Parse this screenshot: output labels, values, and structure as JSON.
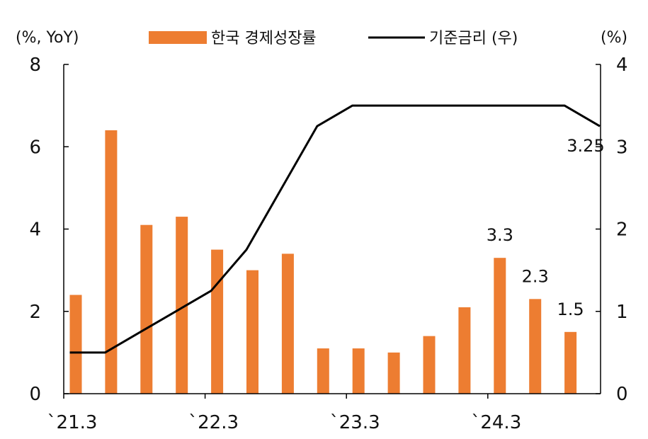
{
  "chart_data": {
    "type": "bar",
    "title": "",
    "left_axis_unit": "(%, YoY)",
    "right_axis_unit": "(%)",
    "categories": [
      "`21.3",
      "",
      "",
      "",
      "`22.3",
      "",
      "",
      "",
      "`23.3",
      "",
      "",
      "",
      "`24.3",
      "",
      ""
    ],
    "x_tick_labels": [
      "`21.3",
      "`22.3",
      "`23.3",
      "`24.3"
    ],
    "y_left": {
      "min": 0,
      "max": 8,
      "ticks": [
        0,
        2,
        4,
        6,
        8
      ]
    },
    "y_right": {
      "min": 0,
      "max": 4,
      "ticks": [
        0,
        1,
        2,
        3,
        4
      ]
    },
    "series": [
      {
        "name": "한국 경제성장률",
        "kind": "bar",
        "axis": "left",
        "color": "#ED7D31",
        "values": [
          2.4,
          6.4,
          4.1,
          4.3,
          3.5,
          3.0,
          3.4,
          1.1,
          1.1,
          1.0,
          1.4,
          2.1,
          3.3,
          2.3,
          1.5
        ]
      },
      {
        "name": "기준금리 (우)",
        "kind": "line",
        "axis": "right",
        "color": "#000000",
        "x": [
          0,
          1,
          2,
          3,
          4,
          5,
          6,
          7,
          8,
          9,
          10,
          11,
          12,
          13,
          14,
          15
        ],
        "values": [
          0.5,
          0.5,
          0.75,
          1.0,
          1.25,
          1.75,
          2.5,
          3.25,
          3.5,
          3.5,
          3.5,
          3.5,
          3.5,
          3.5,
          3.5,
          3.25
        ]
      }
    ],
    "data_labels": [
      {
        "series": 0,
        "index": 12,
        "text": "3.3"
      },
      {
        "series": 0,
        "index": 13,
        "text": "2.3"
      },
      {
        "series": 0,
        "index": 14,
        "text": "1.5"
      },
      {
        "series": 1,
        "index": 15,
        "text": "3.25"
      }
    ],
    "legend": {
      "placement": "top",
      "items": [
        "한국 경제성장률",
        "기준금리 (우)"
      ]
    },
    "grid": false
  }
}
